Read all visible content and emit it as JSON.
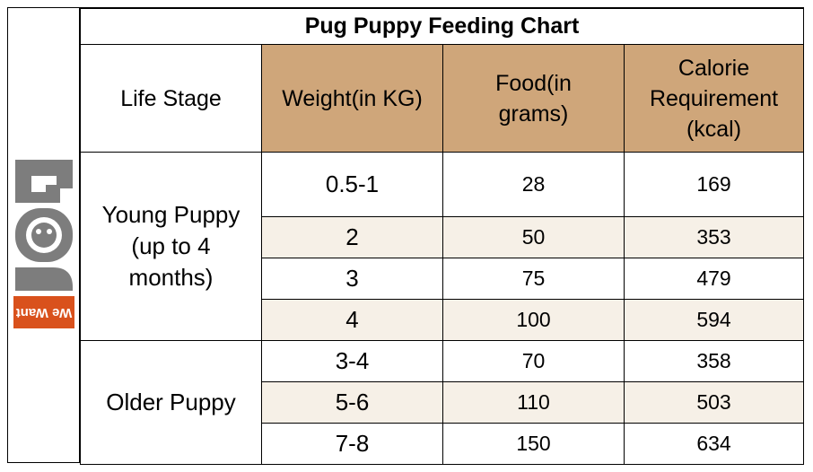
{
  "logo": {
    "letters": "DOG",
    "tagline": "We Want",
    "brand_color": "#d9511c",
    "icon": "pug-face-icon"
  },
  "table": {
    "title": "Pug Puppy Feeding Chart",
    "headers": {
      "life_stage": "Life Stage",
      "weight": "Weight(in KG)",
      "food_line1": "Food(in",
      "food_line2": "grams)",
      "cal_line1": "Calorie",
      "cal_line2": "Requirement",
      "cal_line3": "(kcal)"
    },
    "groups": [
      {
        "stage_line1": "Young Puppy",
        "stage_line2": "(up to 4",
        "stage_line3": "months)",
        "rows": [
          {
            "weight": "0.5-1",
            "food": "28",
            "calories": "169"
          },
          {
            "weight": "2",
            "food": "50",
            "calories": "353"
          },
          {
            "weight": "3",
            "food": "75",
            "calories": "479"
          },
          {
            "weight": "4",
            "food": "100",
            "calories": "594"
          }
        ]
      },
      {
        "stage_line1": "Older Puppy",
        "rows": [
          {
            "weight": "3-4",
            "food": "70",
            "calories": "358"
          },
          {
            "weight": "5-6",
            "food": "110",
            "calories": "503"
          },
          {
            "weight": "7-8",
            "food": "150",
            "calories": "634"
          }
        ]
      }
    ],
    "colors": {
      "header_bg": "#cfa67a",
      "row_shade": "#f6f0e7"
    }
  }
}
